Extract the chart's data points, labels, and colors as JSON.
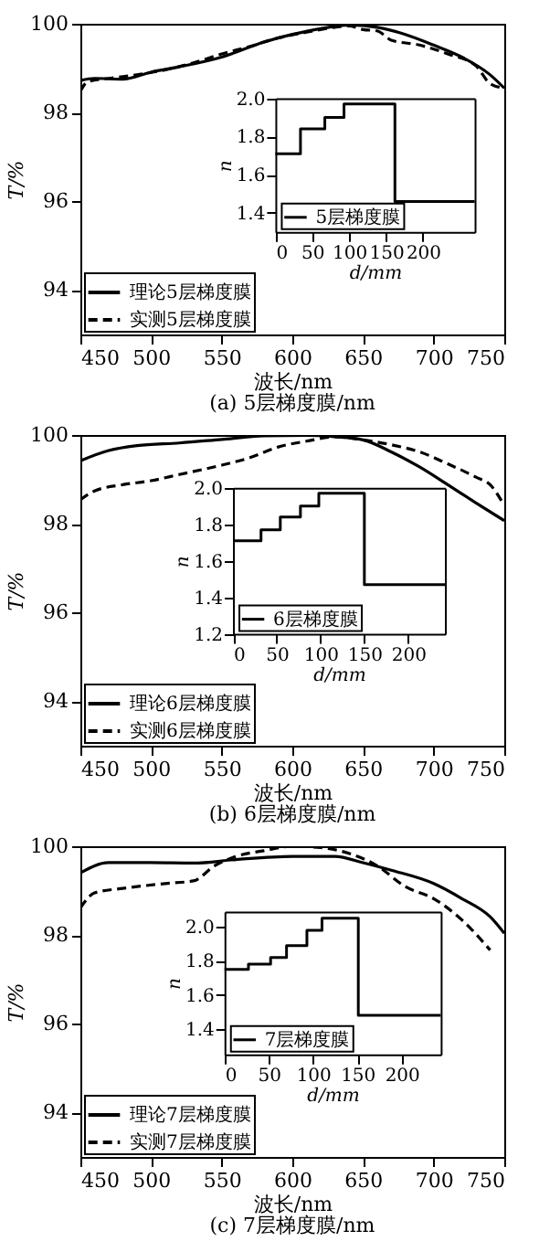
{
  "chart_data": [
    {
      "type": "line",
      "xlabel": "波长/nm",
      "ylabel": "T/%",
      "annotations": [
        "(a) 5层梯度膜/nm"
      ],
      "xlim": [
        450,
        750
      ],
      "xticks": [
        450,
        500,
        550,
        600,
        650,
        700,
        750
      ],
      "ylim": [
        93,
        100
      ],
      "yticks": [
        94,
        96,
        98,
        100
      ],
      "legend": "bottom left",
      "grid": false,
      "series": [
        {
          "name": "理论5层梯度膜",
          "color": "#000000",
          "line_style": "solid",
          "x": [
            450,
            460,
            480,
            500,
            520,
            550,
            580,
            600,
            620,
            640,
            660,
            680,
            700,
            720,
            740,
            750
          ],
          "values": [
            98.72,
            98.77,
            98.75,
            98.91,
            99.03,
            99.25,
            99.59,
            99.76,
            99.89,
            99.97,
            99.92,
            99.76,
            99.52,
            99.25,
            98.85,
            98.55
          ]
        },
        {
          "name": "实测5层梯度膜",
          "color": "#000000",
          "line_style": "dashed",
          "x": [
            450,
            455,
            470,
            490,
            510,
            530,
            550,
            570,
            590,
            610,
            630,
            640,
            650,
            660,
            670,
            690,
            710,
            730,
            740,
            750
          ],
          "values": [
            98.48,
            98.69,
            98.77,
            98.85,
            98.96,
            99.12,
            99.32,
            99.49,
            99.68,
            99.81,
            99.92,
            99.95,
            99.87,
            99.84,
            99.63,
            99.52,
            99.32,
            99.05,
            98.65,
            98.55
          ]
        }
      ]
    },
    {
      "type": "step",
      "xlabel": "d/mm",
      "ylabel": "n",
      "xlim": [
        0,
        270
      ],
      "xticks": [
        0,
        50,
        100,
        150,
        200
      ],
      "ylim": [
        1.3,
        2.0
      ],
      "yticks": [
        {
          "value": 1.4,
          "label": "1.4"
        },
        {
          "value": 1.6,
          "label": "1.6"
        },
        {
          "value": 1.8,
          "label": "1.8"
        },
        {
          "value": 2.0,
          "label": "2.0"
        }
      ],
      "legend": "bottom left",
      "series": [
        {
          "name": "5层梯度膜",
          "color": "#000000",
          "x": [
            0,
            34,
            67,
            93,
            162,
            270
          ],
          "values": [
            1.71,
            1.84,
            1.9,
            1.97,
            1.46,
            1.46
          ]
        }
      ]
    },
    {
      "type": "line",
      "xlabel": "波长/nm",
      "ylabel": "T/%",
      "annotations": [
        "(b) 6层梯度膜/nm"
      ],
      "xlim": [
        450,
        750
      ],
      "xticks": [
        450,
        500,
        550,
        600,
        650,
        700,
        750
      ],
      "ylim": [
        93,
        100
      ],
      "yticks": [
        94,
        96,
        98,
        100
      ],
      "legend": "bottom left",
      "grid": false,
      "series": [
        {
          "name": "理论6层梯度膜",
          "color": "#000000",
          "line_style": "solid",
          "x": [
            450,
            470,
            490,
            520,
            550,
            580,
            610,
            630,
            650,
            670,
            690,
            710,
            730,
            750
          ],
          "values": [
            99.42,
            99.65,
            99.76,
            99.82,
            99.9,
            99.98,
            99.99,
            99.96,
            99.89,
            99.62,
            99.28,
            98.88,
            98.47,
            98.07
          ]
        },
        {
          "name": "实测6层梯度膜",
          "color": "#000000",
          "line_style": "dashed",
          "x": [
            450,
            460,
            480,
            500,
            520,
            550,
            570,
            590,
            610,
            630,
            650,
            670,
            690,
            710,
            730,
            740,
            750
          ],
          "values": [
            98.54,
            98.74,
            98.88,
            98.97,
            99.11,
            99.32,
            99.49,
            99.73,
            99.86,
            99.96,
            99.89,
            99.78,
            99.62,
            99.35,
            99.05,
            98.88,
            98.41
          ]
        }
      ]
    },
    {
      "type": "step",
      "xlabel": "d/mm",
      "ylabel": "n",
      "xlim": [
        0,
        242
      ],
      "xticks": [
        0,
        50,
        100,
        150,
        200
      ],
      "ylim": [
        1.2,
        2.0
      ],
      "yticks": [
        {
          "value": 1.2,
          "label": "1.2"
        },
        {
          "value": 1.4,
          "label": "1.4"
        },
        {
          "value": 1.6,
          "label": "1.6"
        },
        {
          "value": 1.8,
          "label": "1.8"
        },
        {
          "value": 2.0,
          "label": "2.0"
        }
      ],
      "legend": "bottom left",
      "series": [
        {
          "name": "6层梯度膜",
          "color": "#000000",
          "x": [
            0,
            32,
            54,
            77,
            98,
            150,
            242
          ],
          "values": [
            1.71,
            1.77,
            1.84,
            1.9,
            1.97,
            1.47,
            1.47
          ]
        }
      ]
    },
    {
      "type": "line",
      "xlabel": "波长/nm",
      "ylabel": "T/%",
      "annotations": [
        "(c) 7层梯度膜/nm"
      ],
      "xlim": [
        450,
        750
      ],
      "xticks": [
        450,
        500,
        550,
        600,
        650,
        700,
        750
      ],
      "ylim": [
        93,
        100
      ],
      "yticks": [
        94,
        96,
        98,
        100
      ],
      "legend": "bottom left",
      "grid": false,
      "series": [
        {
          "name": "理论7层梯度膜",
          "color": "#000000",
          "line_style": "solid",
          "x": [
            450,
            470,
            500,
            530,
            560,
            600,
            630,
            650,
            670,
            700,
            720,
            740,
            750
          ],
          "values": [
            99.4,
            99.63,
            99.63,
            99.62,
            99.7,
            99.77,
            99.77,
            99.63,
            99.46,
            99.16,
            98.82,
            98.41,
            98.04
          ]
        },
        {
          "name": "实测7层梯度膜",
          "color": "#000000",
          "line_style": "dashed",
          "x": [
            450,
            460,
            480,
            510,
            530,
            545,
            560,
            580,
            600,
            620,
            640,
            660,
            680,
            700,
            720,
            740
          ],
          "values": [
            98.61,
            98.95,
            99.05,
            99.16,
            99.22,
            99.56,
            99.77,
            99.9,
            100,
            99.97,
            99.84,
            99.56,
            99.09,
            98.82,
            98.34,
            97.66
          ]
        }
      ]
    },
    {
      "type": "step",
      "xlabel": "d/mm",
      "ylabel": "n",
      "xlim": [
        0,
        244
      ],
      "xticks": [
        0,
        50,
        100,
        150,
        200
      ],
      "ylim": [
        1.25,
        2.09
      ],
      "yticks": [
        {
          "value": 1.4,
          "label": "1.4"
        },
        {
          "value": 1.6,
          "label": "1.6"
        },
        {
          "value": 1.8,
          "label": "1.8"
        },
        {
          "value": 2.0,
          "label": "2.0"
        }
      ],
      "legend": "bottom left",
      "series": [
        {
          "name": "7层梯度膜",
          "color": "#000000",
          "x": [
            0,
            27,
            52,
            70,
            93,
            110,
            151,
            244
          ],
          "values": [
            1.75,
            1.78,
            1.82,
            1.89,
            1.98,
            2.05,
            1.48,
            1.48
          ]
        }
      ]
    }
  ]
}
